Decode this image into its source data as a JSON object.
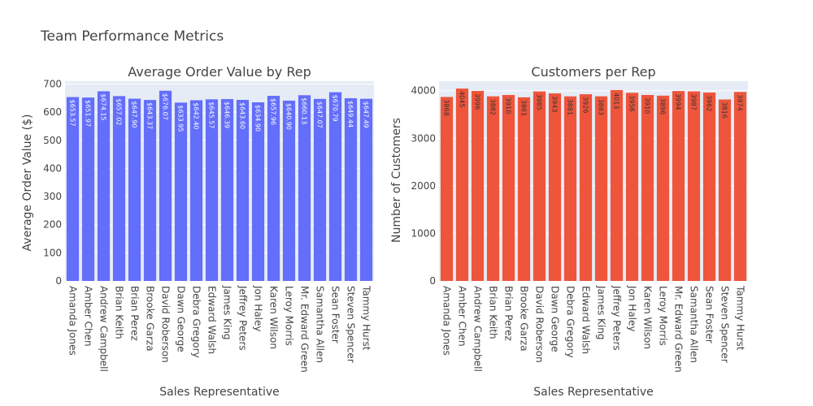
{
  "title": "Team Performance Metrics",
  "colors": {
    "series1": "#636efa",
    "series2": "#ef553b",
    "plot_bg": "#e5ecf6",
    "grid": "#ffffff"
  },
  "chart_data": [
    {
      "type": "bar",
      "title": "Average Order Value by Rep",
      "xlabel": "Sales Representative",
      "ylabel": "Average Order Value ($)",
      "ylim": [
        0,
        710
      ],
      "yticks": [
        0,
        100,
        200,
        300,
        400,
        500,
        600,
        700
      ],
      "grid": true,
      "categories": [
        "Amanda Jones",
        "Amber Chen",
        "Andrew Campbell",
        "Brian Keith",
        "Brian Perez",
        "Brooke Garza",
        "David Roberson",
        "Dawn George",
        "Debra Gregory",
        "Edward Walsh",
        "James King",
        "Jeffrey Peters",
        "Jon Haley",
        "Karen Wilson",
        "Leroy Morris",
        "Mr. Edward Green",
        "Samantha Allen",
        "Sean Foster",
        "Steven Spencer",
        "Tammy Hurst"
      ],
      "values": [
        653.57,
        651.97,
        674.15,
        657.02,
        647.9,
        643.37,
        676.07,
        633.95,
        642.4,
        645.57,
        646.39,
        643.6,
        634.9,
        657.96,
        640.9,
        660.13,
        647.07,
        670.79,
        649.44,
        647.49
      ],
      "labels": [
        "$653.57",
        "$651.97",
        "$674.15",
        "$657.02",
        "$647.90",
        "$643.37",
        "$676.07",
        "$633.95",
        "$642.40",
        "$645.57",
        "$646.39",
        "$643.60",
        "$634.90",
        "$657.96",
        "$640.90",
        "$660.13",
        "$647.07",
        "$670.79",
        "$649.44",
        "$647.49"
      ]
    },
    {
      "type": "bar",
      "title": "Customers per Rep",
      "xlabel": "Sales Representative",
      "ylabel": "Number of Customers",
      "ylim": [
        0,
        4200
      ],
      "yticks": [
        0,
        1000,
        2000,
        3000,
        4000
      ],
      "grid": true,
      "categories": [
        "Amanda Jones",
        "Amber Chen",
        "Andrew Campbell",
        "Brian Keith",
        "Brian Perez",
        "Brooke Garza",
        "David Roberson",
        "Dawn George",
        "Debra Gregory",
        "Edward Walsh",
        "James King",
        "Jeffrey Peters",
        "Jon Haley",
        "Karen Wilson",
        "Leroy Morris",
        "Mr. Edward Green",
        "Samantha Allen",
        "Sean Foster",
        "Steven Spencer",
        "Tammy Hurst"
      ],
      "values": [
        3868,
        4045,
        3996,
        3882,
        3910,
        3861,
        3985,
        3943,
        3881,
        3926,
        3883,
        4013,
        3956,
        3910,
        3896,
        3994,
        3987,
        3962,
        3816,
        3974
      ],
      "labels": [
        "3868",
        "4045",
        "3996",
        "3882",
        "3910",
        "3861",
        "3985",
        "3943",
        "3881",
        "3926",
        "3883",
        "4013",
        "3956",
        "3910",
        "3896",
        "3994",
        "3987",
        "3962",
        "3816",
        "3974"
      ]
    }
  ]
}
